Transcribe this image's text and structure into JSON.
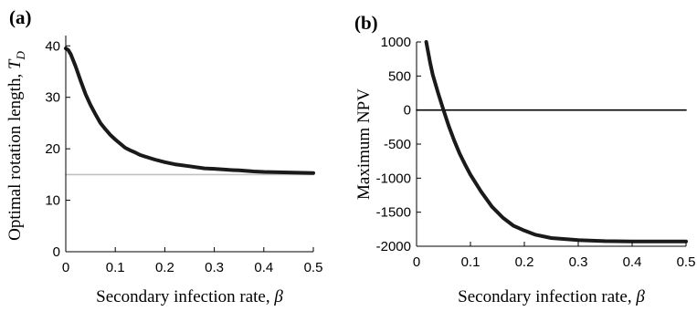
{
  "chart_data": [
    {
      "type": "line",
      "panel_label": "(a)",
      "xlabel": "Secondary infection rate, β",
      "ylabel": "Optimal rotation length, T_D",
      "ylabel_main": "Optimal rotation length, ",
      "ylabel_symbol": "T",
      "ylabel_subscript": "D",
      "xlabel_main": "Secondary infection rate, ",
      "xlabel_symbol": "β",
      "xlim": [
        0,
        0.5
      ],
      "ylim": [
        0,
        42
      ],
      "xticks": [
        "0",
        "0.1",
        "0.2",
        "0.3",
        "0.4",
        "0.5"
      ],
      "yticks": [
        "0",
        "10",
        "20",
        "30",
        "40"
      ],
      "grid": false,
      "series": [
        {
          "color": "#1a1a1a",
          "x": [
            0,
            0.005,
            0.01,
            0.02,
            0.03,
            0.04,
            0.05,
            0.06,
            0.07,
            0.08,
            0.09,
            0.1,
            0.11,
            0.12,
            0.13,
            0.14,
            0.15,
            0.16,
            0.18,
            0.2,
            0.22,
            0.25,
            0.28,
            0.3,
            0.33,
            0.35,
            0.38,
            0.4,
            0.45,
            0.5
          ],
          "y": [
            39.5,
            39.2,
            38.4,
            36.0,
            33.2,
            30.6,
            28.5,
            26.7,
            25.0,
            23.8,
            22.7,
            21.8,
            21.0,
            20.2,
            19.7,
            19.3,
            18.8,
            18.5,
            17.9,
            17.4,
            17.0,
            16.6,
            16.2,
            16.1,
            15.9,
            15.8,
            15.6,
            15.5,
            15.4,
            15.3
          ]
        },
        {
          "color": "#c0c0c0",
          "x": [
            0,
            0.5
          ],
          "y": [
            15,
            15
          ]
        }
      ]
    },
    {
      "type": "line",
      "panel_label": "(b)",
      "xlabel": "Secondary infection rate, β",
      "ylabel": "Maximum NPV",
      "ylabel_main": "Maximum NPV",
      "ylabel_symbol": "",
      "ylabel_subscript": "",
      "xlabel_main": "Secondary infection rate, ",
      "xlabel_symbol": "β",
      "xlim": [
        0,
        0.5
      ],
      "ylim": [
        -2000,
        1000
      ],
      "xticks": [
        "0",
        "0.1",
        "0.2",
        "0.3",
        "0.4",
        "0.5"
      ],
      "yticks": [
        "-2000",
        "-1500",
        "-1000",
        "-500",
        "0",
        "500",
        "1000"
      ],
      "grid": false,
      "series": [
        {
          "color": "#1a1a1a",
          "x": [
            0.018,
            0.025,
            0.03,
            0.04,
            0.05,
            0.06,
            0.07,
            0.08,
            0.09,
            0.1,
            0.12,
            0.14,
            0.16,
            0.18,
            0.2,
            0.22,
            0.25,
            0.3,
            0.35,
            0.4,
            0.45,
            0.5
          ],
          "y": [
            1000,
            700,
            520,
            250,
            0,
            -240,
            -450,
            -640,
            -800,
            -950,
            -1200,
            -1420,
            -1580,
            -1700,
            -1770,
            -1830,
            -1880,
            -1910,
            -1925,
            -1930,
            -1930,
            -1930
          ]
        },
        {
          "color": "#000000",
          "x": [
            0,
            0.5
          ],
          "y": [
            0,
            0
          ]
        }
      ]
    }
  ]
}
